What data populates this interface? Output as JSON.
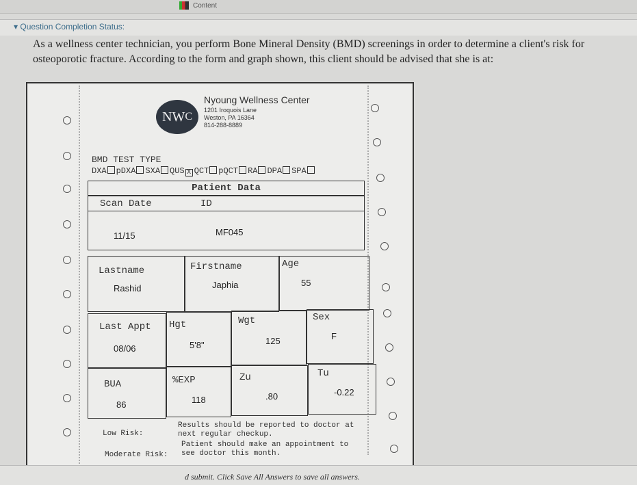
{
  "window": {
    "tab_label": "Content",
    "tab_icon": "chart-icon"
  },
  "question": {
    "status_label": "Question Completion Status:",
    "text": "As a wellness center technician, you perform Bone Mineral Density (BMD) screenings in order to determine a client's risk for osteoporotic fracture. According to the form and graph shown, this client should be advised that she is at:"
  },
  "form": {
    "logo": "NWC",
    "center_name": "Nyoung Wellness Center",
    "address1": "1201 Iroquois Lane",
    "address2": "Weston, PA  16364",
    "phone": "814-288-8889",
    "test_type_label": "BMD TEST TYPE",
    "test_types": [
      {
        "label": "DXA",
        "checked": false
      },
      {
        "label": "pDXA",
        "checked": false
      },
      {
        "label": "SXA",
        "checked": false
      },
      {
        "label": "QUS",
        "checked": true
      },
      {
        "label": "QCT",
        "checked": false
      },
      {
        "label": "pQCT",
        "checked": false
      },
      {
        "label": "RA",
        "checked": false
      },
      {
        "label": "DPA",
        "checked": false
      },
      {
        "label": "SPA",
        "checked": false
      }
    ],
    "patient_data_title": "Patient Data",
    "scan_date_label": "Scan Date",
    "scan_date": "11/15",
    "id_label": "ID",
    "id": "MF045",
    "lastname_label": "Lastname",
    "lastname": "Rashid",
    "firstname_label": "Firstname",
    "firstname": "Japhia",
    "age_label": "Age",
    "age": "55",
    "last_appt_label": "Last Appt",
    "last_appt": "08/06",
    "hgt_label": "Hgt",
    "hgt": "5'8\"",
    "wgt_label": "Wgt",
    "wgt": "125",
    "sex_label": "Sex",
    "sex": "F",
    "bua_label": "BUA",
    "bua": "86",
    "exp_label": "%EXP",
    "exp": "118",
    "zu_label": "Zu",
    "zu": ".80",
    "tu_label": "Tu",
    "tu": "-0.22",
    "low_risk_label": "Low Risk:",
    "low_risk_text1": "Results should be reported to doctor at",
    "low_risk_text2": "next regular checkup.",
    "moderate_risk_label": "Moderate Risk:",
    "moderate_risk_text1": "Patient should make an appointment to",
    "moderate_risk_text2": "see doctor this month."
  },
  "footer": {
    "note": "d submit. Click Save All Answers to save all answers."
  }
}
